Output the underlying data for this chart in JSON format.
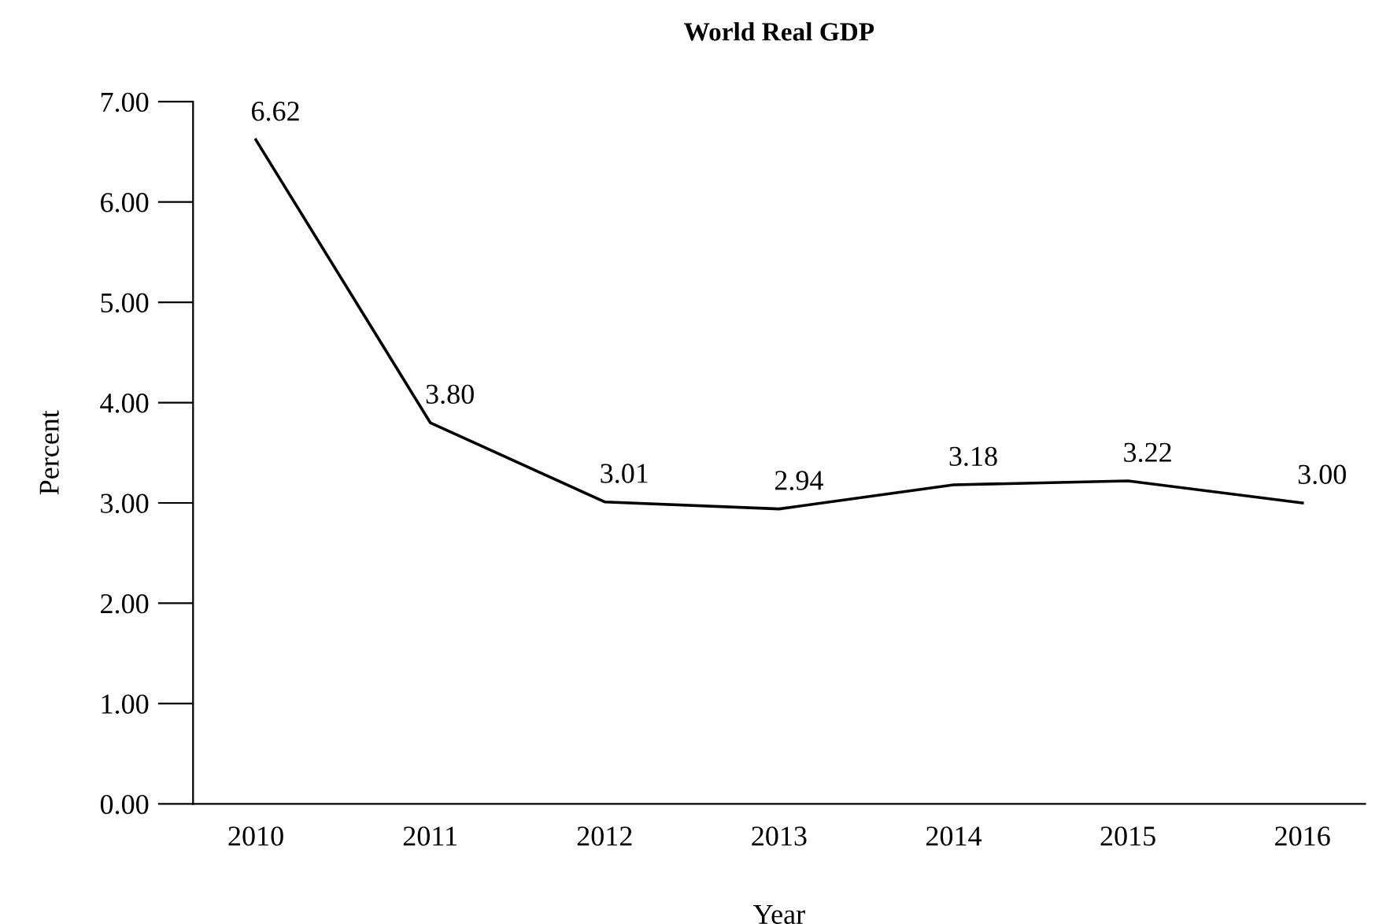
{
  "chart_data": {
    "type": "line",
    "title": "World Real GDP",
    "xlabel": "Year",
    "ylabel": "Percent",
    "categories": [
      "2010",
      "2011",
      "2012",
      "2013",
      "2014",
      "2015",
      "2016"
    ],
    "series": [
      {
        "color": "#000000",
        "values": [
          6.62,
          3.8,
          3.01,
          2.94,
          3.18,
          3.22,
          3.0
        ]
      }
    ],
    "value_labels": [
      "6.62",
      "3.80",
      "3.01",
      "2.94",
      "3.18",
      "3.22",
      "3.00"
    ],
    "ylim": [
      0,
      7
    ],
    "yticks": [
      {
        "value": 0,
        "label": "0.00"
      },
      {
        "value": 1,
        "label": "1.00"
      },
      {
        "value": 2,
        "label": "2.00"
      },
      {
        "value": 3,
        "label": "3.00"
      },
      {
        "value": 4,
        "label": "4.00"
      },
      {
        "value": 5,
        "label": "5.00"
      },
      {
        "value": 6,
        "label": "6.00"
      },
      {
        "value": 7,
        "label": "7.00"
      }
    ],
    "grid": false,
    "legend": false,
    "marker": "none",
    "line_style": "solid"
  }
}
